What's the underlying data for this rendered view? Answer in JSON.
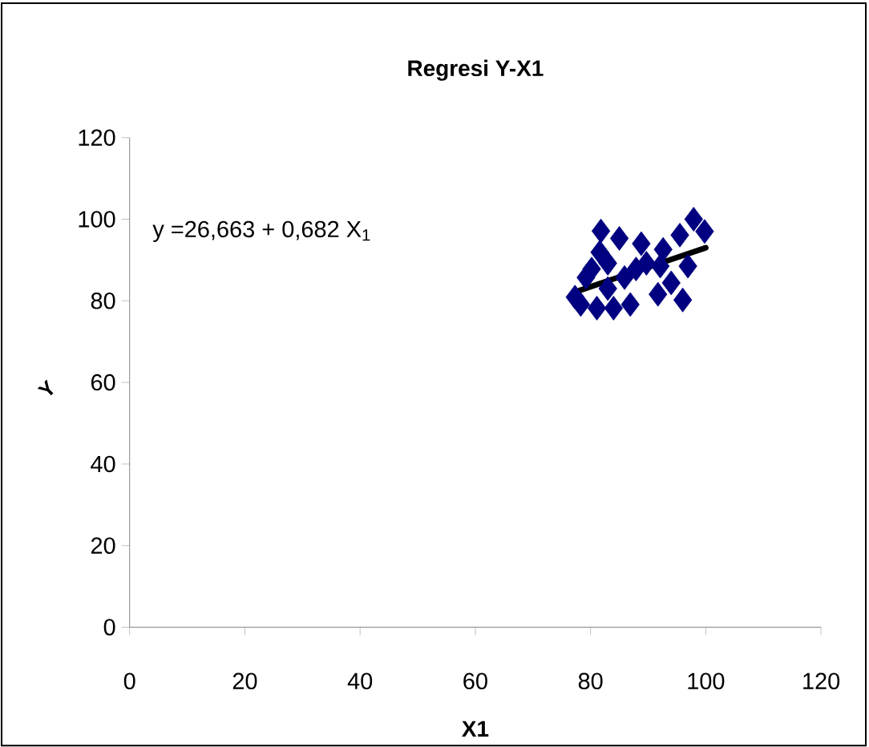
{
  "chart_data": {
    "type": "scatter",
    "title": "Regresi Y-X1",
    "xlabel": "X1",
    "ylabel": "Y",
    "annotations": [
      "y =26,663 + 0,682 X$_{1}$"
    ],
    "xlim": [
      0,
      120
    ],
    "ylim": [
      0,
      120
    ],
    "xticks": [
      0,
      20,
      40,
      60,
      80,
      100,
      120
    ],
    "yticks": [
      0,
      20,
      40,
      60,
      80,
      100,
      120
    ],
    "series": [
      {
        "marker": "diamond",
        "color": "#000080",
        "x": [
          81.8,
          97.9,
          99.8,
          96,
          78.3,
          81.1,
          84,
          86.9,
          91.7,
          79.2,
          80.2,
          81.6,
          85,
          88.8,
          92.6,
          96.9,
          94,
          85.9,
          83,
          89.7,
          95.5,
          77.3,
          87.9,
          92.1,
          83
        ],
        "values": [
          97.1,
          100,
          97,
          80.2,
          79.1,
          78.2,
          78.2,
          79.1,
          81.6,
          85.7,
          87.8,
          91.9,
          95.3,
          94,
          92.6,
          88.5,
          84.4,
          85.7,
          83,
          89.2,
          96.1,
          80.9,
          87.8,
          88.5,
          89.2
        ]
      },
      {
        "type": "line",
        "marker": "none",
        "color": "#000000",
        "x": [
          78,
          100
        ],
        "values": [
          82.5,
          93
        ]
      }
    ]
  }
}
